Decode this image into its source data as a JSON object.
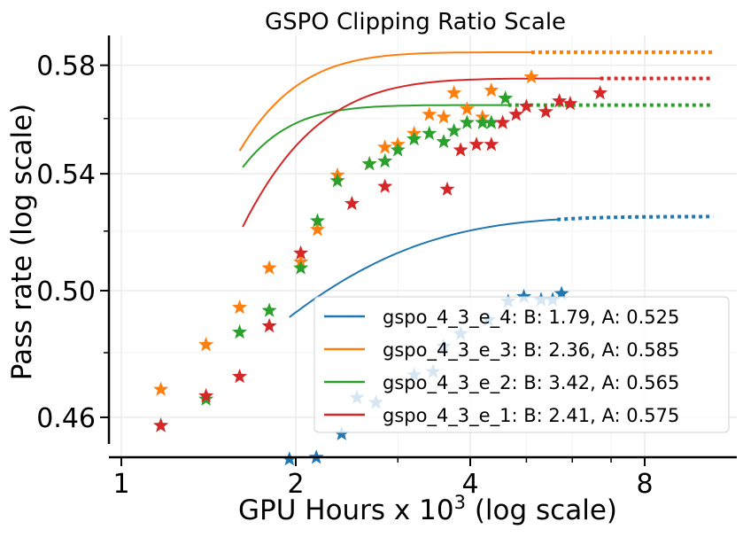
{
  "chart_data": {
    "type": "scatter",
    "title": "GSPO Clipping Ratio Scale",
    "xlabel_main": "GPU Hours x 10",
    "xlabel_sup": "3",
    "xlabel_tail": " (log scale)",
    "ylabel": "Pass rate (log scale)",
    "xscale": "log2",
    "yscale": "log",
    "xlim": [
      0.95,
      11
    ],
    "ylim": [
      0.452,
      0.5915
    ],
    "xticks": [
      {
        "value": 1,
        "label": "1"
      },
      {
        "value": 2,
        "label": "2"
      },
      {
        "value": 4,
        "label": "4"
      },
      {
        "value": 8,
        "label": "8"
      }
    ],
    "yticks": [
      {
        "value": 0.46,
        "label": "0.46"
      },
      {
        "value": 0.5,
        "label": "0.50"
      },
      {
        "value": 0.54,
        "label": "0.54"
      },
      {
        "value": 0.58,
        "label": "0.58"
      }
    ],
    "legend_position": "lower-right",
    "series": [
      {
        "name": "gspo_4_3_e_4",
        "legend_label": "gspo_4_3_e_4: B: 1.79, A: 0.525",
        "color": "#1f77b4",
        "points": [
          [
            2.17,
            0.448
          ],
          [
            1.95,
            0.4475
          ],
          [
            2.4,
            0.455
          ],
          [
            2.55,
            0.466
          ],
          [
            2.75,
            0.4645
          ],
          [
            3.2,
            0.473
          ],
          [
            3.45,
            0.474
          ],
          [
            3.6,
            0.482
          ],
          [
            3.85,
            0.486
          ],
          [
            4.3,
            0.4905
          ],
          [
            4.65,
            0.4965
          ],
          [
            4.95,
            0.498
          ],
          [
            5.3,
            0.497
          ],
          [
            5.55,
            0.497
          ],
          [
            5.75,
            0.499
          ]
        ],
        "fit_solid_x": [
          1.95,
          5.65
        ],
        "fit_dotted_x": [
          5.65,
          10.5
        ],
        "fit": {
          "A": 0.525,
          "c": 0.083,
          "k": 0.95
        }
      },
      {
        "name": "gspo_4_3_e_3",
        "legend_label": "gspo_4_3_e_3: B: 2.36, A: 0.585",
        "color": "#ff7f0e",
        "points": [
          [
            1.17,
            0.4685
          ],
          [
            1.4,
            0.4825
          ],
          [
            1.6,
            0.4945
          ],
          [
            1.8,
            0.5075
          ],
          [
            2.04,
            0.5095
          ],
          [
            2.18,
            0.5205
          ],
          [
            2.36,
            0.5395
          ],
          [
            2.68,
            0.5435
          ],
          [
            2.85,
            0.5495
          ],
          [
            3.0,
            0.5505
          ],
          [
            3.2,
            0.5545
          ],
          [
            3.4,
            0.5615
          ],
          [
            3.6,
            0.5605
          ],
          [
            3.75,
            0.5695
          ],
          [
            3.95,
            0.5635
          ],
          [
            4.2,
            0.5605
          ],
          [
            4.35,
            0.5705
          ],
          [
            5.1,
            0.5755
          ]
        ],
        "fit_solid_x": [
          1.6,
          5.1
        ],
        "fit_dotted_x": [
          5.1,
          10.5
        ],
        "fit": {
          "A": 0.585,
          "c": 0.175,
          "k": 2.6
        }
      },
      {
        "name": "gspo_4_3_e_2",
        "legend_label": "gspo_4_3_e_2: B: 3.42, A: 0.565",
        "color": "#2ca02c",
        "points": [
          [
            1.17,
            0.4575
          ],
          [
            1.4,
            0.4655
          ],
          [
            1.6,
            0.4865
          ],
          [
            1.8,
            0.4935
          ],
          [
            2.04,
            0.5075
          ],
          [
            2.18,
            0.5235
          ],
          [
            2.36,
            0.5375
          ],
          [
            2.68,
            0.5435
          ],
          [
            2.85,
            0.5445
          ],
          [
            3.0,
            0.5485
          ],
          [
            3.2,
            0.5525
          ],
          [
            3.4,
            0.5545
          ],
          [
            3.6,
            0.5515
          ],
          [
            3.75,
            0.5555
          ],
          [
            3.95,
            0.5585
          ],
          [
            4.2,
            0.5585
          ],
          [
            4.35,
            0.5585
          ],
          [
            4.6,
            0.5675
          ]
        ],
        "fit_solid_x": [
          1.62,
          4.65
        ],
        "fit_dotted_x": [
          4.65,
          10.5
        ],
        "fit": {
          "A": 0.565,
          "c": 0.165,
          "k": 3.2
        }
      },
      {
        "name": "gspo_4_3_e_1",
        "legend_label": "gspo_4_3_e_1: B: 2.41, A: 0.575",
        "color": "#d62728",
        "points": [
          [
            1.17,
            0.4575
          ],
          [
            1.4,
            0.4665
          ],
          [
            1.6,
            0.4725
          ],
          [
            1.8,
            0.4885
          ],
          [
            2.04,
            0.5125
          ],
          [
            2.5,
            0.5295
          ],
          [
            2.85,
            0.5355
          ],
          [
            3.65,
            0.5345
          ],
          [
            3.85,
            0.5485
          ],
          [
            4.1,
            0.5505
          ],
          [
            4.35,
            0.5505
          ],
          [
            4.55,
            0.5585
          ],
          [
            4.8,
            0.5615
          ],
          [
            5.0,
            0.5645
          ],
          [
            5.4,
            0.5625
          ],
          [
            5.7,
            0.5665
          ],
          [
            5.95,
            0.5655
          ],
          [
            6.7,
            0.5695
          ]
        ],
        "fit_solid_x": [
          1.62,
          6.7
        ],
        "fit_dotted_x": [
          6.7,
          10.5
        ],
        "fit": {
          "A": 0.575,
          "c": 0.185,
          "k": 2.0
        }
      }
    ]
  }
}
